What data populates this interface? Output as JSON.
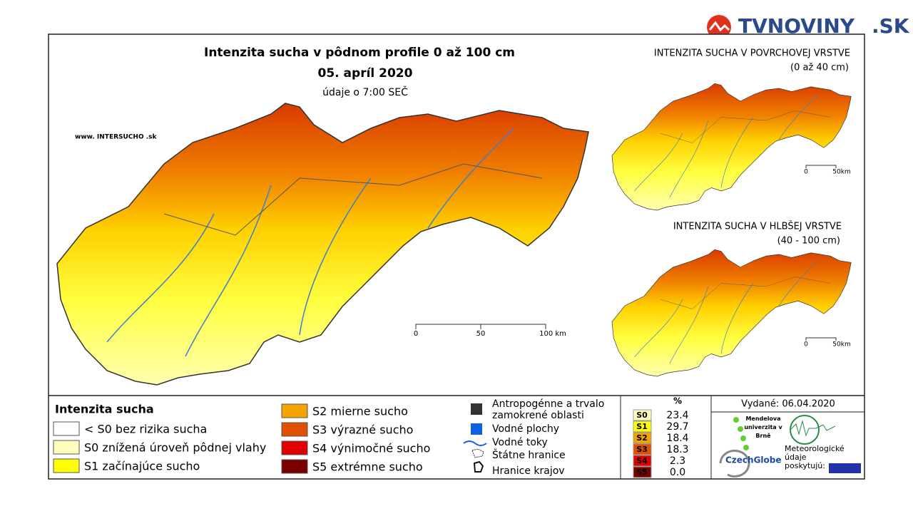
{
  "logo": {
    "brand": "TVNOVINY",
    "tld": ".SK"
  },
  "main_map": {
    "title": "Intenzita sucha v pôdnom profile 0 až 100 cm",
    "date": "05. apríl 2020",
    "time_note": "údaje o 7:00 SEČ",
    "website": "www. INTERSUCHO .sk",
    "scale": [
      "0",
      "50",
      "100 km"
    ]
  },
  "inset_surface": {
    "title": "INTENZITA SUCHA V POVRCHOVEJ VRSTVE",
    "subtitle": "(0 až 40 cm)",
    "scale": [
      "0",
      "50km"
    ]
  },
  "inset_deep": {
    "title": "INTENZITA SUCHA V HLBŠEJ VRSTVE",
    "subtitle": "(40 - 100 cm)",
    "scale": [
      "0",
      "50km"
    ]
  },
  "legend": {
    "title": "Intenzita sucha",
    "items": [
      {
        "label": "< S0 bez rizika sucha",
        "color": "#ffffff"
      },
      {
        "label": "S0 znížená úroveň pôdnej vlahy",
        "color": "#ffffc0"
      },
      {
        "label": "S1 začínajúce sucho",
        "color": "#ffff00"
      },
      {
        "label": "S2 mierne sucho",
        "color": "#f5a300"
      },
      {
        "label": "S3 výrazné sucho",
        "color": "#e05000"
      },
      {
        "label": "S4 výnimočné sucho",
        "color": "#e00000"
      },
      {
        "label": "S5 extrémne sucho",
        "color": "#7a0000"
      }
    ]
  },
  "other_legend": [
    "Antropogénne a trvalo zamokrené oblasti",
    "Vodné plochy",
    "Vodné toky",
    "Štátne hranice",
    "Hranice krajov"
  ],
  "table": {
    "header": "%",
    "rows": [
      [
        "S0",
        "23.4"
      ],
      [
        "S1",
        "29.7"
      ],
      [
        "S2",
        "18.4"
      ],
      [
        "S3",
        "18.3"
      ],
      [
        "S4",
        "2.3"
      ],
      [
        "S5",
        "0.0"
      ]
    ]
  },
  "issued": "Vydané: 06.04.2020",
  "credits": {
    "mendel": "Mendelova univerzita v Brně",
    "czechglobe": "CzechGlobe",
    "meteo": "Meteorologické údaje poskytujú:"
  }
}
